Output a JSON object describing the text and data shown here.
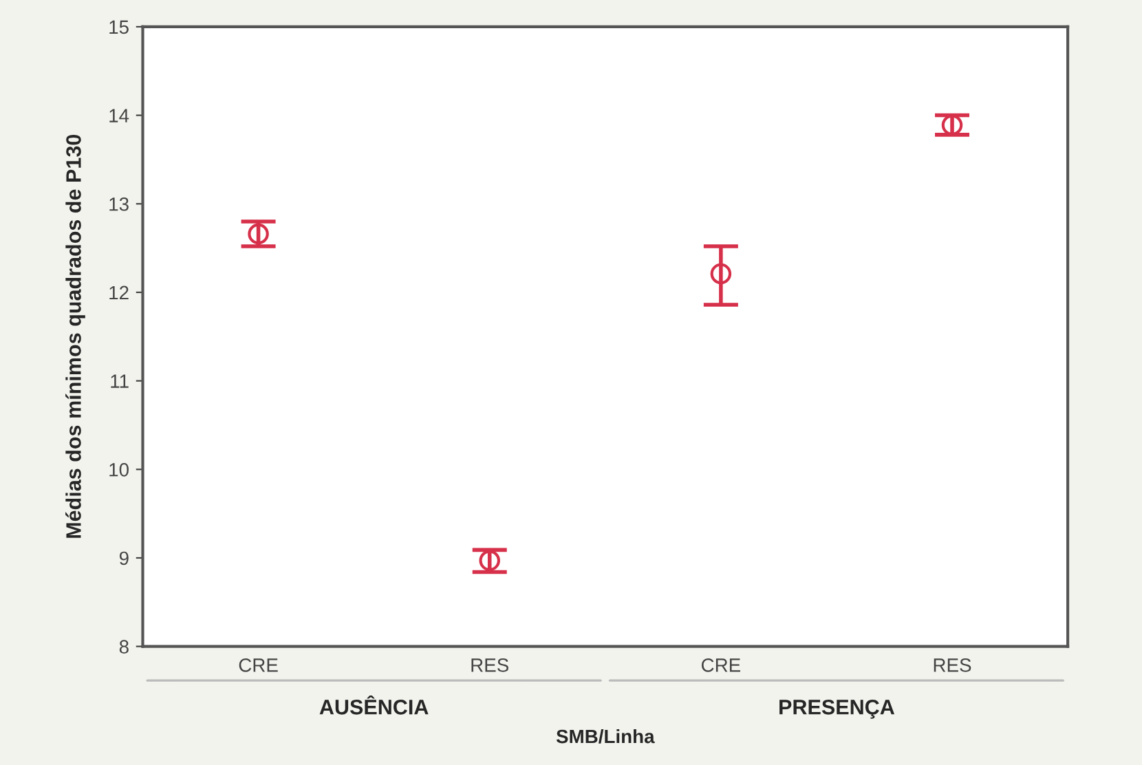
{
  "chart_data": {
    "type": "scatter",
    "ylabel": "Médias dos mínimos quadrados de P130",
    "xlabel": "SMB/Linha",
    "categories": [
      "CRE",
      "RES",
      "CRE",
      "RES"
    ],
    "series": [
      {
        "color": "#d6304a",
        "values": [
          12.66,
          8.97,
          12.21,
          13.89
        ],
        "errors": [
          [
            12.52,
            12.8
          ],
          [
            8.84,
            9.09
          ],
          [
            11.86,
            12.52
          ],
          [
            13.78,
            14.0
          ]
        ]
      }
    ],
    "annotations": [
      "AUSÊNCIA",
      "PRESENÇA"
    ],
    "ylim": [
      8,
      15
    ],
    "yticks": [
      8,
      9,
      10,
      11,
      12,
      13,
      14,
      15
    ],
    "grid": false,
    "legend": false,
    "marker": "circle"
  }
}
